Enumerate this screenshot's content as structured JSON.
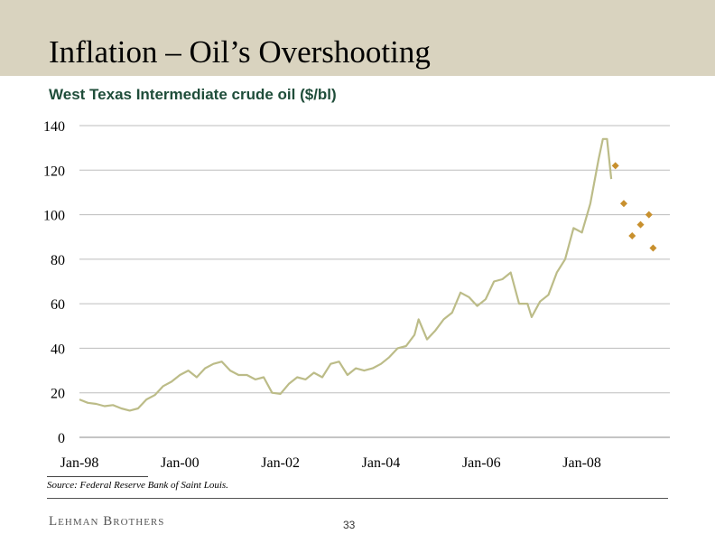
{
  "slide": {
    "title": "Inflation – Oil’s Overshooting",
    "source": "Source: Federal Reserve Bank of Saint Louis.",
    "logo": "Lehman Brothers",
    "page_number": "33"
  },
  "colors": {
    "line": "#bcbc88",
    "marker": "#c8902e",
    "title_band": "#d9d3bf",
    "grid": "#bdbdbd"
  },
  "chart_data": {
    "type": "line",
    "title": "West Texas Intermediate crude oil ($/bl)",
    "ylim": [
      0,
      140
    ],
    "yticks": [
      0,
      20,
      40,
      60,
      80,
      100,
      120,
      140
    ],
    "xticks": [
      "Jan-98",
      "Jan-00",
      "Jan-02",
      "Jan-04",
      "Jan-06",
      "Jan-08"
    ],
    "grid": true,
    "series": [
      {
        "kind": "line",
        "points": [
          [
            "1998-01",
            17
          ],
          [
            "1998-03",
            15.5
          ],
          [
            "1998-05",
            15
          ],
          [
            "1998-07",
            14
          ],
          [
            "1998-09",
            14.5
          ],
          [
            "1998-11",
            13
          ],
          [
            "1999-01",
            12
          ],
          [
            "1999-03",
            13
          ],
          [
            "1999-05",
            17
          ],
          [
            "1999-07",
            19
          ],
          [
            "1999-09",
            23
          ],
          [
            "1999-11",
            25
          ],
          [
            "2000-01",
            28
          ],
          [
            "2000-03",
            30
          ],
          [
            "2000-05",
            27
          ],
          [
            "2000-07",
            31
          ],
          [
            "2000-09",
            33
          ],
          [
            "2000-11",
            34
          ],
          [
            "2001-01",
            30
          ],
          [
            "2001-03",
            28
          ],
          [
            "2001-05",
            28
          ],
          [
            "2001-07",
            26
          ],
          [
            "2001-09",
            27
          ],
          [
            "2001-11",
            20
          ],
          [
            "2002-01",
            19.5
          ],
          [
            "2002-03",
            24
          ],
          [
            "2002-05",
            27
          ],
          [
            "2002-07",
            26
          ],
          [
            "2002-09",
            29
          ],
          [
            "2002-11",
            27
          ],
          [
            "2003-01",
            33
          ],
          [
            "2003-03",
            34
          ],
          [
            "2003-05",
            28
          ],
          [
            "2003-07",
            31
          ],
          [
            "2003-09",
            30
          ],
          [
            "2003-11",
            31
          ],
          [
            "2004-01",
            33
          ],
          [
            "2004-03",
            36
          ],
          [
            "2004-05",
            40
          ],
          [
            "2004-07",
            41
          ],
          [
            "2004-09",
            46
          ],
          [
            "2004-10",
            53
          ],
          [
            "2004-12",
            44
          ],
          [
            "2005-02",
            48
          ],
          [
            "2005-04",
            53
          ],
          [
            "2005-06",
            56
          ],
          [
            "2005-08",
            65
          ],
          [
            "2005-10",
            63
          ],
          [
            "2005-12",
            59
          ],
          [
            "2006-02",
            62
          ],
          [
            "2006-04",
            70
          ],
          [
            "2006-06",
            71
          ],
          [
            "2006-08",
            74
          ],
          [
            "2006-10",
            60
          ],
          [
            "2006-12",
            60
          ],
          [
            "2007-01",
            54
          ],
          [
            "2007-03",
            61
          ],
          [
            "2007-05",
            64
          ],
          [
            "2007-07",
            74
          ],
          [
            "2007-09",
            80
          ],
          [
            "2007-11",
            94
          ],
          [
            "2008-01",
            92
          ],
          [
            "2008-03",
            105
          ],
          [
            "2008-05",
            125
          ],
          [
            "2008-06",
            134
          ],
          [
            "2008-07",
            134
          ],
          [
            "2008-08",
            116
          ]
        ]
      },
      {
        "kind": "scatter",
        "marker": "diamond",
        "points": [
          [
            "2008-09",
            122
          ],
          [
            "2008-11",
            105
          ],
          [
            "2009-01",
            90.5
          ],
          [
            "2009-03",
            95.5
          ],
          [
            "2009-05",
            100
          ],
          [
            "2009-06",
            85
          ]
        ]
      }
    ]
  }
}
